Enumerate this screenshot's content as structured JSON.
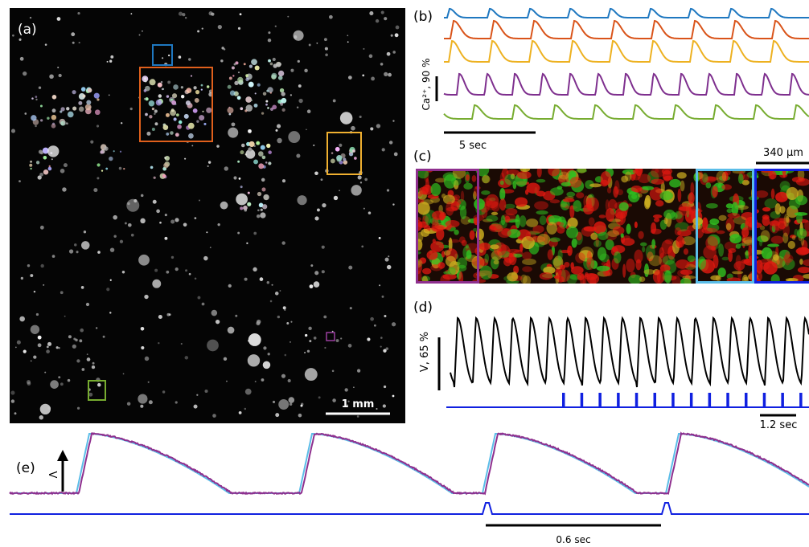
{
  "panel_a": {
    "label": "(a)",
    "scale_bar_label": "1 mm"
  },
  "panel_b": {
    "label": "(b)",
    "y_scale_label": "Ca²⁺, 90 %",
    "time_scale_label": "5 sec"
  },
  "panel_c": {
    "label": "(c)",
    "scale_bar_label": "340 μm"
  },
  "panel_d": {
    "label": "(d)",
    "y_scale_label": "V, 65 %",
    "time_scale_label": "1.2 sec"
  },
  "panel_e": {
    "label": "(e)",
    "y_axis_label": "V",
    "time_scale_label": "0.6 sec"
  }
}
